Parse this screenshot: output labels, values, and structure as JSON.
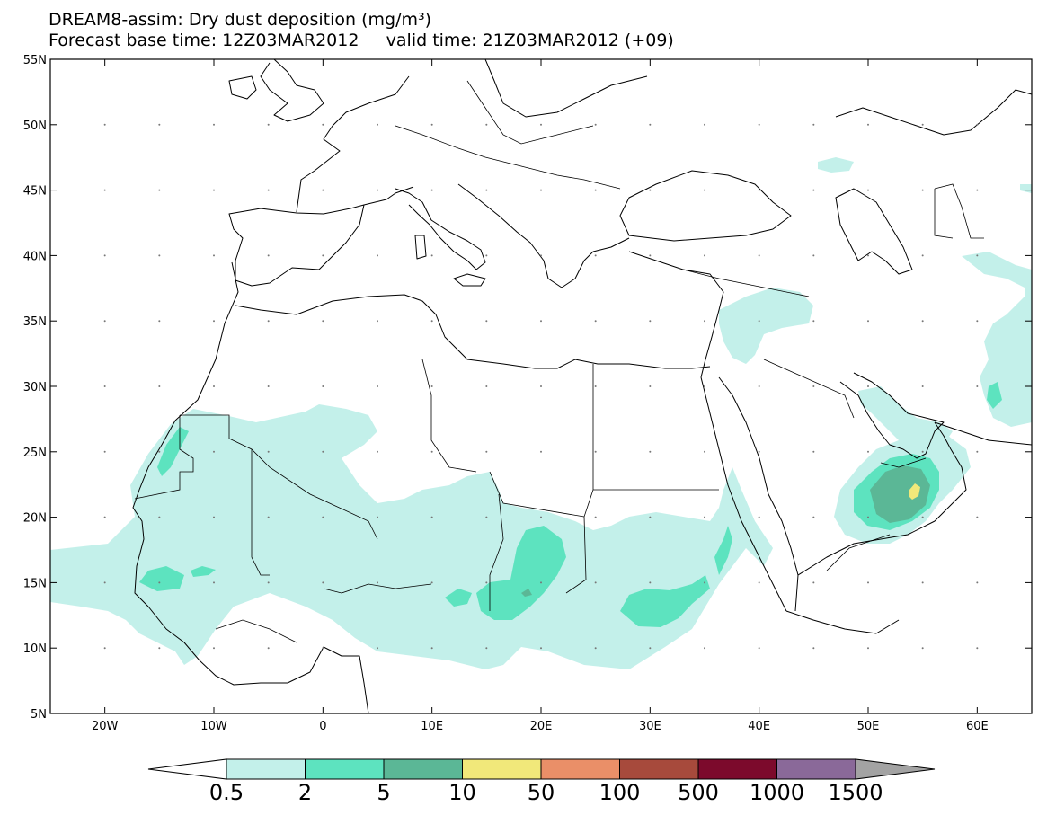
{
  "title": {
    "line1": "DREAM8-assim: Dry dust deposition (mg/m³)",
    "base_time": "Forecast base time: 12Z03MAR2012",
    "valid_time": "valid time: 21Z03MAR2012 (+09)"
  },
  "map": {
    "lon_range": [
      -25,
      65
    ],
    "lat_range": [
      5,
      55
    ],
    "lat_ticks": [
      {
        "value": 55,
        "label": "55N"
      },
      {
        "value": 50,
        "label": "50N"
      },
      {
        "value": 45,
        "label": "45N"
      },
      {
        "value": 40,
        "label": "40N"
      },
      {
        "value": 35,
        "label": "35N"
      },
      {
        "value": 30,
        "label": "30N"
      },
      {
        "value": 25,
        "label": "25N"
      },
      {
        "value": 20,
        "label": "20N"
      },
      {
        "value": 15,
        "label": "15N"
      },
      {
        "value": 10,
        "label": "10N"
      },
      {
        "value": 5,
        "label": "5N"
      }
    ],
    "lon_ticks": [
      {
        "value": -20,
        "label": "20W"
      },
      {
        "value": -10,
        "label": "10W"
      },
      {
        "value": 0,
        "label": "0"
      },
      {
        "value": 10,
        "label": "10E"
      },
      {
        "value": 20,
        "label": "20E"
      },
      {
        "value": 30,
        "label": "30E"
      },
      {
        "value": 40,
        "label": "40E"
      },
      {
        "value": 50,
        "label": "50E"
      },
      {
        "value": 60,
        "label": "60E"
      }
    ]
  },
  "colorbar": {
    "levels": [
      "0.5",
      "2",
      "5",
      "10",
      "50",
      "100",
      "500",
      "1000",
      "1500"
    ],
    "colors": [
      "#c3f0ea",
      "#5de3bf",
      "#5bb796",
      "#f1e87a",
      "#ea8f68",
      "#a74a3c",
      "#7c0a2c",
      "#8a6999"
    ],
    "under_color": "#ffffff",
    "over_color": "#a3a3a3"
  },
  "colors": {
    "level1": "#c3f0ea",
    "level2": "#5de3bf",
    "level3": "#5bb796",
    "level4": "#f1e87a"
  }
}
